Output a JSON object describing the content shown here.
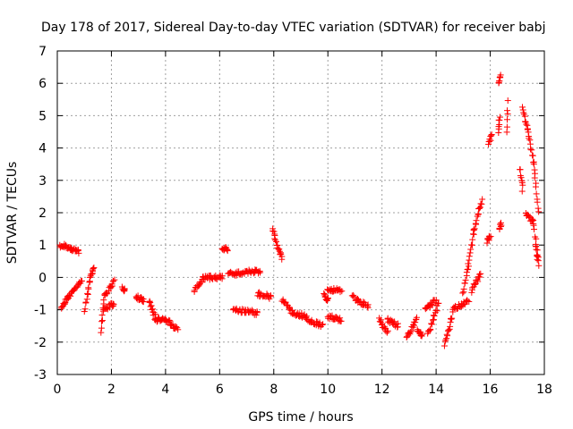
{
  "chart_data": {
    "type": "scatter",
    "title": "Day 178 of 2017, Sidereal Day-to-day VTEC variation (SDTVAR) for receiver babj",
    "xlabel": "GPS time / hours",
    "ylabel": "SDTVAR / TECUs",
    "xlim": [
      0,
      18
    ],
    "ylim": [
      -3,
      7
    ],
    "xticks": [
      "0",
      "2",
      "4",
      "6",
      "8",
      "10",
      "12",
      "14",
      "16",
      "18"
    ],
    "yticks": [
      "-3",
      "-2",
      "-1",
      "0",
      "1",
      "2",
      "3",
      "4",
      "5",
      "6",
      "7"
    ],
    "grid": true,
    "marker": "+",
    "color": "#ff0000",
    "segments": [
      [
        0.1,
        1.0,
        0.5,
        0.9
      ],
      [
        0.5,
        0.9,
        0.8,
        0.8
      ],
      [
        0.15,
        -1.0,
        0.4,
        -0.6
      ],
      [
        0.4,
        -0.6,
        0.9,
        -0.1
      ],
      [
        1.0,
        -1.0,
        1.2,
        -0.1
      ],
      [
        1.2,
        -0.1,
        1.35,
        0.3
      ],
      [
        1.6,
        -1.7,
        1.75,
        -0.6
      ],
      [
        1.75,
        -0.6,
        2.1,
        -0.1
      ],
      [
        1.7,
        -1.0,
        2.1,
        -0.8
      ],
      [
        2.4,
        -0.3,
        2.5,
        -0.4
      ],
      [
        2.9,
        -0.6,
        3.2,
        -0.7
      ],
      [
        3.4,
        -0.7,
        3.6,
        -1.2
      ],
      [
        3.6,
        -1.3,
        4.0,
        -1.3
      ],
      [
        4.0,
        -1.3,
        4.45,
        -1.6
      ],
      [
        5.05,
        -0.4,
        5.4,
        0.0
      ],
      [
        5.4,
        0.0,
        6.1,
        0.0
      ],
      [
        6.1,
        0.9,
        6.3,
        0.85
      ],
      [
        6.3,
        0.1,
        7.5,
        0.2
      ],
      [
        6.5,
        -1.0,
        7.4,
        -1.1
      ],
      [
        7.4,
        -0.5,
        7.9,
        -0.6
      ],
      [
        7.95,
        1.5,
        8.15,
        0.9
      ],
      [
        8.15,
        0.9,
        8.3,
        0.6
      ],
      [
        8.3,
        -0.7,
        8.7,
        -1.1
      ],
      [
        8.7,
        -1.1,
        9.2,
        -1.2
      ],
      [
        9.2,
        -1.3,
        9.8,
        -1.5
      ],
      [
        9.85,
        -0.5,
        10.0,
        -0.7
      ],
      [
        10.0,
        -0.4,
        10.5,
        -0.4
      ],
      [
        10.0,
        -1.2,
        10.5,
        -1.3
      ],
      [
        10.9,
        -0.6,
        11.5,
        -0.9
      ],
      [
        11.9,
        -1.3,
        12.2,
        -1.7
      ],
      [
        12.2,
        -1.3,
        12.6,
        -1.5
      ],
      [
        12.9,
        -1.9,
        13.3,
        -1.2
      ],
      [
        13.3,
        -1.6,
        13.5,
        -1.8
      ],
      [
        13.6,
        -1.0,
        14.0,
        -0.7
      ],
      [
        13.7,
        -1.8,
        14.1,
        -0.8
      ],
      [
        14.3,
        -2.1,
        14.6,
        -1.2
      ],
      [
        14.6,
        -1.0,
        15.2,
        -0.7
      ],
      [
        15.0,
        -0.5,
        15.2,
        0.4
      ],
      [
        15.2,
        0.4,
        15.4,
        1.5
      ],
      [
        15.4,
        1.5,
        15.7,
        2.4
      ],
      [
        15.3,
        -0.4,
        15.65,
        0.1
      ],
      [
        15.9,
        1.1,
        16.0,
        1.3
      ],
      [
        15.95,
        4.1,
        16.05,
        4.4
      ],
      [
        16.3,
        4.5,
        16.35,
        5.0
      ],
      [
        16.3,
        6.0,
        16.4,
        6.2
      ],
      [
        16.35,
        1.5,
        16.4,
        1.7
      ],
      [
        16.6,
        4.5,
        16.65,
        5.4
      ],
      [
        17.2,
        5.2,
        17.4,
        4.5
      ],
      [
        17.4,
        4.5,
        17.6,
        3.5
      ],
      [
        17.6,
        3.5,
        17.8,
        2.0
      ],
      [
        17.3,
        2.0,
        17.6,
        1.7
      ],
      [
        17.6,
        1.7,
        17.75,
        0.6
      ],
      [
        17.1,
        3.4,
        17.2,
        2.7
      ],
      [
        17.7,
        1.0,
        17.8,
        0.4
      ]
    ]
  }
}
